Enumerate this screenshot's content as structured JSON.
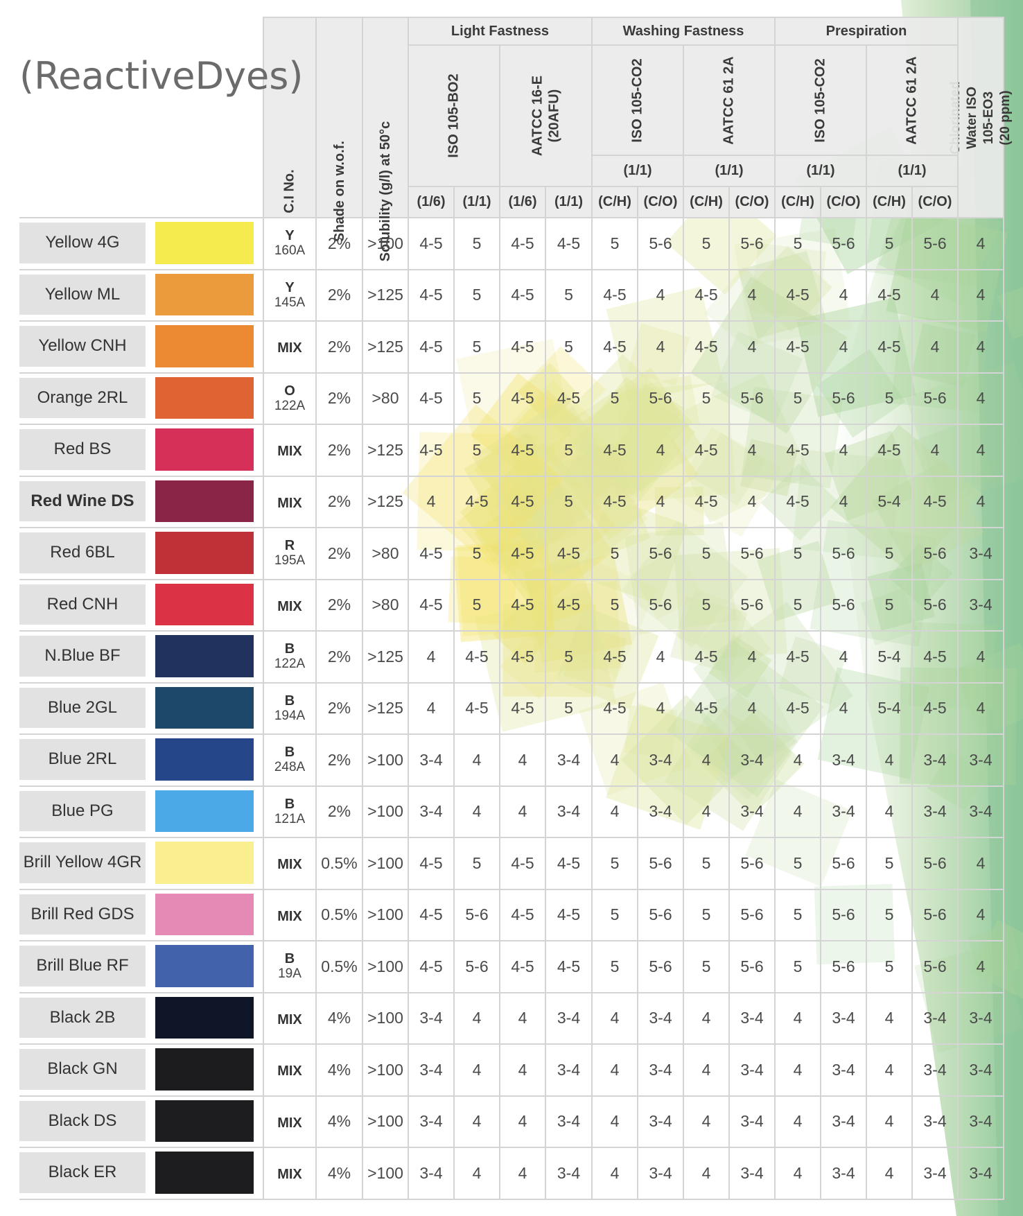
{
  "title": "(ReactiveDyes)",
  "headers": {
    "ci_no": "C.I No.",
    "shade": "Shade on w.o.f.",
    "solubility": "Solubility (g/l) at 50°c",
    "light_fastness": "Light Fastness",
    "washing_fastness": "Washing Fastness",
    "perspiration": "Prespiration",
    "chlorinated": "Chlorinated Water ISO 105-EO3 (20 ppm)",
    "std_iso_bo2": "ISO 105-BO2",
    "std_aatcc16": "AATCC 16-E (20AFU)",
    "std_iso_co2_w": "ISO 105-CO2",
    "std_aatcc61_w": "AATCC 61 2A",
    "std_iso_co2_p": "ISO 105-CO2",
    "std_aatcc61_p": "AATCC 61 2A",
    "ratio_w1": "(1/1)",
    "ratio_w2": "(1/1)",
    "ratio_p1": "(1/1)",
    "ratio_p2": "(1/1)",
    "sub": [
      "(1/6)",
      "(1/1)",
      "(1/6)",
      "(1/1)",
      "(C/H)",
      "(C/O)",
      "(C/H)",
      "(C/O)",
      "(C/H)",
      "(C/O)",
      "(C/H)",
      "(C/O)"
    ]
  },
  "rows": [
    {
      "name": "Yellow 4G",
      "color": "#f5ea4e",
      "ci_top": "Y",
      "ci_bottom": "160A",
      "shade": "2%",
      "solubility": ">100",
      "values": [
        "4-5",
        "5",
        "4-5",
        "4-5",
        "5",
        "5-6",
        "5",
        "5-6",
        "5",
        "5-6",
        "5",
        "5-6",
        "4"
      ]
    },
    {
      "name": "Yellow ML",
      "color": "#eb9a3c",
      "ci_top": "Y",
      "ci_bottom": "145A",
      "shade": "2%",
      "solubility": ">125",
      "values": [
        "4-5",
        "5",
        "4-5",
        "5",
        "4-5",
        "4",
        "4-5",
        "4",
        "4-5",
        "4",
        "4-5",
        "4",
        "4"
      ]
    },
    {
      "name": "Yellow CNH",
      "color": "#ec8a34",
      "ci_top": "MIX",
      "ci_bottom": "",
      "shade": "2%",
      "solubility": ">125",
      "values": [
        "4-5",
        "5",
        "4-5",
        "5",
        "4-5",
        "4",
        "4-5",
        "4",
        "4-5",
        "4",
        "4-5",
        "4",
        "4"
      ]
    },
    {
      "name": "Orange 2RL",
      "color": "#e06333",
      "ci_top": "O",
      "ci_bottom": "122A",
      "shade": "2%",
      "solubility": ">80",
      "values": [
        "4-5",
        "5",
        "4-5",
        "4-5",
        "5",
        "5-6",
        "5",
        "5-6",
        "5",
        "5-6",
        "5",
        "5-6",
        "4"
      ]
    },
    {
      "name": "Red BS",
      "color": "#d63059",
      "ci_top": "MIX",
      "ci_bottom": "",
      "shade": "2%",
      "solubility": ">125",
      "values": [
        "4-5",
        "5",
        "4-5",
        "5",
        "4-5",
        "4",
        "4-5",
        "4",
        "4-5",
        "4",
        "4-5",
        "4",
        "4"
      ]
    },
    {
      "name": "Red Wine DS",
      "color": "#8a2548",
      "ci_top": "MIX",
      "ci_bottom": "",
      "shade": "2%",
      "solubility": ">125",
      "values": [
        "4",
        "4-5",
        "4-5",
        "5",
        "4-5",
        "4",
        "4-5",
        "4",
        "4-5",
        "4",
        "5-4",
        "4-5",
        "4"
      ],
      "bold": true
    },
    {
      "name": "Red 6BL",
      "color": "#bf3136",
      "ci_top": "R",
      "ci_bottom": "195A",
      "shade": "2%",
      "solubility": ">80",
      "values": [
        "4-5",
        "5",
        "4-5",
        "4-5",
        "5",
        "5-6",
        "5",
        "5-6",
        "5",
        "5-6",
        "5",
        "5-6",
        "3-4"
      ]
    },
    {
      "name": "Red CNH",
      "color": "#dc3245",
      "ci_top": "MIX",
      "ci_bottom": "",
      "shade": "2%",
      "solubility": ">80",
      "values": [
        "4-5",
        "5",
        "4-5",
        "4-5",
        "5",
        "5-6",
        "5",
        "5-6",
        "5",
        "5-6",
        "5",
        "5-6",
        "3-4"
      ]
    },
    {
      "name": "N.Blue BF",
      "color": "#22325f",
      "ci_top": "B",
      "ci_bottom": "122A",
      "shade": "2%",
      "solubility": ">125",
      "values": [
        "4",
        "4-5",
        "4-5",
        "5",
        "4-5",
        "4",
        "4-5",
        "4",
        "4-5",
        "4",
        "5-4",
        "4-5",
        "4"
      ]
    },
    {
      "name": "Blue 2GL",
      "color": "#1e4869",
      "ci_top": "B",
      "ci_bottom": "194A",
      "shade": "2%",
      "solubility": ">125",
      "values": [
        "4",
        "4-5",
        "4-5",
        "5",
        "4-5",
        "4",
        "4-5",
        "4",
        "4-5",
        "4",
        "5-4",
        "4-5",
        "4"
      ]
    },
    {
      "name": "Blue 2RL",
      "color": "#25478a",
      "ci_top": "B",
      "ci_bottom": "248A",
      "shade": "2%",
      "solubility": ">100",
      "values": [
        "3-4",
        "4",
        "4",
        "3-4",
        "4",
        "3-4",
        "4",
        "3-4",
        "4",
        "3-4",
        "4",
        "3-4",
        "3-4"
      ]
    },
    {
      "name": "Blue PG",
      "color": "#4aa9e6",
      "ci_top": "B",
      "ci_bottom": "121A",
      "shade": "2%",
      "solubility": ">100",
      "values": [
        "3-4",
        "4",
        "4",
        "3-4",
        "4",
        "3-4",
        "4",
        "3-4",
        "4",
        "3-4",
        "4",
        "3-4",
        "3-4"
      ]
    },
    {
      "name": "Brill Yellow 4GR",
      "color": "#f9ef8f",
      "ci_top": "MIX",
      "ci_bottom": "",
      "shade": "0.5%",
      "solubility": ">100",
      "values": [
        "4-5",
        "5",
        "4-5",
        "4-5",
        "5",
        "5-6",
        "5",
        "5-6",
        "5",
        "5-6",
        "5",
        "5-6",
        "4"
      ]
    },
    {
      "name": "Brill Red  GDS",
      "color": "#e58ab5",
      "ci_top": "MIX",
      "ci_bottom": "",
      "shade": "0.5%",
      "solubility": ">100",
      "values": [
        "4-5",
        "5-6",
        "4-5",
        "4-5",
        "5",
        "5-6",
        "5",
        "5-6",
        "5",
        "5-6",
        "5",
        "5-6",
        "4"
      ]
    },
    {
      "name": "Brill Blue RF",
      "color": "#4263ab",
      "ci_top": "B",
      "ci_bottom": "19A",
      "shade": "0.5%",
      "solubility": ">100",
      "values": [
        "4-5",
        "5-6",
        "4-5",
        "4-5",
        "5",
        "5-6",
        "5",
        "5-6",
        "5",
        "5-6",
        "5",
        "5-6",
        "4"
      ]
    },
    {
      "name": "Black 2B",
      "color": "#0e1628",
      "ci_top": "MIX",
      "ci_bottom": "",
      "shade": "4%",
      "solubility": ">100",
      "values": [
        "3-4",
        "4",
        "4",
        "3-4",
        "4",
        "3-4",
        "4",
        "3-4",
        "4",
        "3-4",
        "4",
        "3-4",
        "3-4"
      ]
    },
    {
      "name": "Black GN",
      "color": "#1c1c1e",
      "ci_top": "MIX",
      "ci_bottom": "",
      "shade": "4%",
      "solubility": ">100",
      "values": [
        "3-4",
        "4",
        "4",
        "3-4",
        "4",
        "3-4",
        "4",
        "3-4",
        "4",
        "3-4",
        "4",
        "3-4",
        "3-4"
      ]
    },
    {
      "name": "Black DS",
      "color": "#1d1d1f",
      "ci_top": "MIX",
      "ci_bottom": "",
      "shade": "4%",
      "solubility": ">100",
      "values": [
        "3-4",
        "4",
        "4",
        "3-4",
        "4",
        "3-4",
        "4",
        "3-4",
        "4",
        "3-4",
        "4",
        "3-4",
        "3-4"
      ]
    },
    {
      "name": "Black ER",
      "color": "#1d1d1f",
      "ci_top": "MIX",
      "ci_bottom": "",
      "shade": "4%",
      "solubility": ">100",
      "values": [
        "3-4",
        "4",
        "4",
        "3-4",
        "4",
        "3-4",
        "4",
        "3-4",
        "4",
        "3-4",
        "4",
        "3-4",
        "3-4"
      ]
    }
  ]
}
